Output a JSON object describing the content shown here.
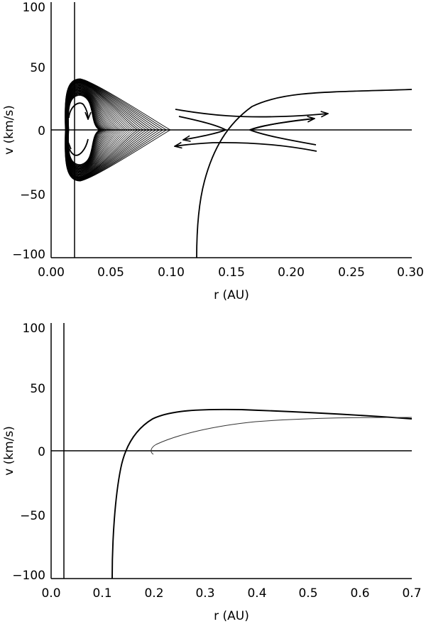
{
  "chart_data": [
    {
      "type": "line",
      "panel": "top",
      "title": "",
      "xlabel": "r (AU)",
      "ylabel": "v (km/s)",
      "xlim": [
        0.0,
        0.3
      ],
      "ylim": [
        -100,
        100
      ],
      "xticks": [
        "0.00",
        "0.05",
        "0.10",
        "0.15",
        "0.20",
        "0.25",
        "0.30"
      ],
      "yticks": [
        "100",
        "50",
        "0",
        "−50",
        "−100"
      ],
      "grid": false,
      "legend": null,
      "reference_lines": [
        {
          "orientation": "horizontal",
          "y": 0
        },
        {
          "orientation": "vertical",
          "x": 0.019
        }
      ],
      "series": [
        {
          "name": "nested closed orbits (phase-space loops)",
          "description": "dense family of nested closed loops centered near r=0.019 AU, v=0; outermost loop spans v about -40 to +40 km/s and extends to r about 0.10 AU; inner loops carry arrows indicating clockwise circulation",
          "v_range": [
            -40,
            40
          ],
          "r_range": [
            0.011,
            0.1
          ]
        },
        {
          "name": "separatrix trajectories near X-point",
          "description": "hyperbolic trajectories around a saddle point near r about 0.16 AU, v=0, with arrows pointing outward to larger r for v>0 and inward to smaller r for v<0",
          "x": [
            0.115,
            0.14,
            0.15,
            0.17,
            0.2,
            0.23
          ],
          "upper_v": [
            15,
            10,
            9,
            9,
            11,
            14
          ],
          "lower_v": [
            -10,
            -11,
            -11,
            -11,
            -13,
            -16
          ]
        },
        {
          "name": "critical solution curve",
          "description": "monotonic curve rising from v=-100 at r about 0.12 AU, crossing v=0 near r=0.16 AU, approaching v about 32 km/s at r=0.30",
          "x": [
            0.121,
            0.125,
            0.13,
            0.14,
            0.16,
            0.18,
            0.2,
            0.25,
            0.3
          ],
          "y": [
            -100,
            -55,
            -35,
            -15,
            2,
            14,
            22,
            29,
            32
          ]
        }
      ]
    },
    {
      "type": "line",
      "panel": "bottom",
      "title": "",
      "xlabel": "r (AU)",
      "ylabel": "v (km/s)",
      "xlim": [
        0.0,
        0.7
      ],
      "ylim": [
        -100,
        100
      ],
      "xticks": [
        "0.0",
        "0.1",
        "0.2",
        "0.3",
        "0.4",
        "0.5",
        "0.6",
        "0.7"
      ],
      "yticks": [
        "100",
        "50",
        "0",
        "−50",
        "−100"
      ],
      "grid": false,
      "legend": null,
      "reference_lines": [
        {
          "orientation": "horizontal",
          "y": 0
        },
        {
          "orientation": "vertical",
          "x": 0.025
        }
      ],
      "series": [
        {
          "name": "thick solution curve",
          "x": [
            0.118,
            0.125,
            0.14,
            0.155,
            0.18,
            0.22,
            0.3,
            0.4,
            0.5,
            0.6,
            0.7
          ],
          "y": [
            -100,
            -55,
            -20,
            0,
            15,
            25,
            31,
            32,
            31,
            28,
            25
          ]
        },
        {
          "name": "thin solution curve",
          "x": [
            0.197,
            0.195,
            0.21,
            0.25,
            0.3,
            0.4,
            0.5,
            0.6,
            0.7
          ],
          "y": [
            -3,
            0,
            4,
            9,
            13,
            19,
            23,
            26,
            27
          ]
        }
      ]
    }
  ],
  "panels": {
    "top": {
      "xlabel": "r (AU)",
      "ylabel": "v (km/s)",
      "xticks": [
        "0.00",
        "0.05",
        "0.10",
        "0.15",
        "0.20",
        "0.25",
        "0.30"
      ],
      "yticks": [
        "100",
        "50",
        "0",
        "−50",
        "−100"
      ]
    },
    "bottom": {
      "xlabel": "r (AU)",
      "ylabel": "v (km/s)",
      "xticks": [
        "0.0",
        "0.1",
        "0.2",
        "0.3",
        "0.4",
        "0.5",
        "0.6",
        "0.7"
      ],
      "yticks": [
        "100",
        "50",
        "0",
        "−50",
        "−100"
      ]
    }
  }
}
